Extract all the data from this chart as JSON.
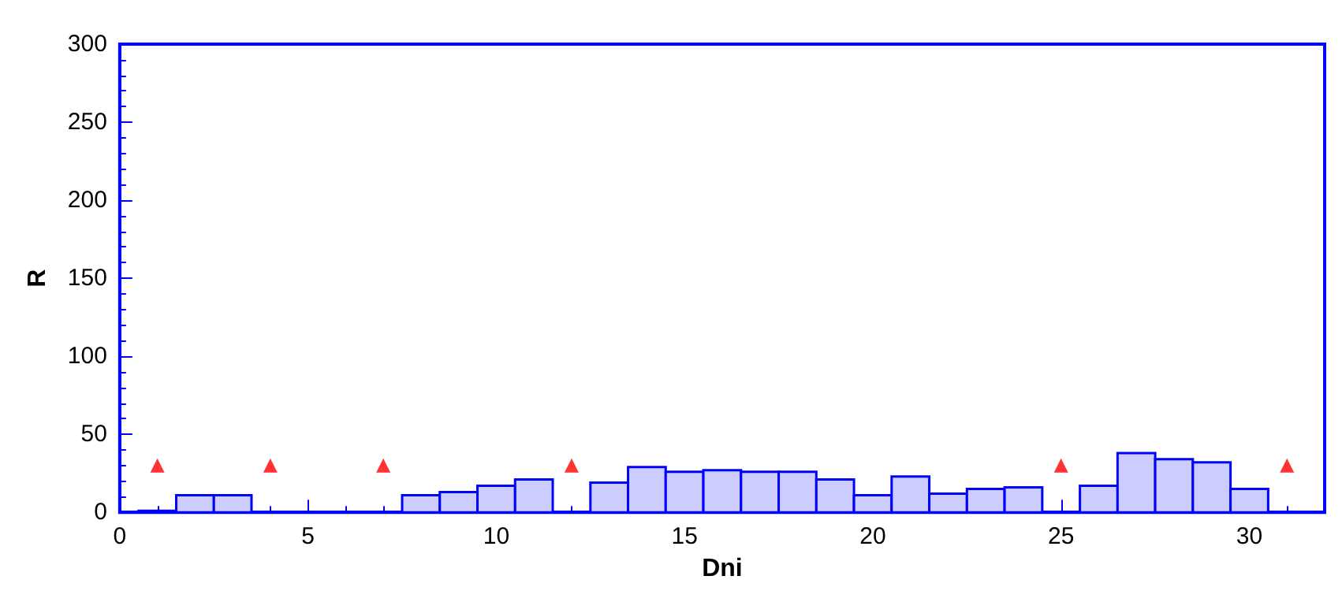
{
  "chart_data": {
    "type": "histogram",
    "xlabel": "Dni",
    "ylabel": "R",
    "bins": [
      0.5,
      1.5,
      2.5,
      3.5,
      4.5,
      5.5,
      6.5,
      7.5,
      8.5,
      9.5,
      10.5,
      11.5,
      12.5,
      13.5,
      14.5,
      15.5,
      16.5,
      17.5,
      18.5,
      19.5,
      20.5,
      21.5,
      22.5,
      23.5,
      24.5,
      25.5,
      26.5,
      27.5,
      28.5,
      29.5,
      30.5,
      31.5
    ],
    "values": [
      1,
      11,
      11,
      0,
      0,
      0,
      0,
      11,
      13,
      17,
      21,
      0,
      19,
      29,
      26,
      27,
      26,
      26,
      21,
      11,
      23,
      12,
      15,
      16,
      0,
      17,
      38,
      34,
      32,
      15,
      0
    ],
    "color": "#ccccff",
    "series": [
      {
        "type": "scatter",
        "x": [
          1,
          4,
          7,
          12,
          25,
          31
        ],
        "values": [
          30,
          30,
          30,
          30,
          30,
          30
        ],
        "color": "#ff0000",
        "marker": "triangle"
      }
    ],
    "xlim": [
      0,
      32
    ],
    "xticks": [
      0,
      5,
      10,
      15,
      20,
      25,
      30
    ],
    "ylim": [
      0,
      300
    ],
    "yticks": [
      0,
      50,
      100,
      150,
      200,
      250,
      300
    ],
    "grid": false
  }
}
